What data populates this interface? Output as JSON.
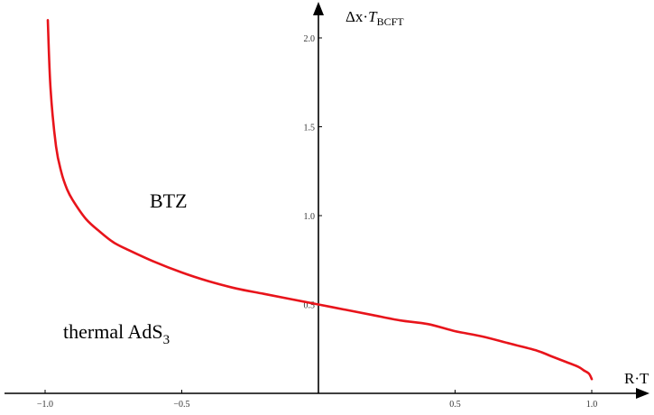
{
  "chart_data": {
    "type": "line",
    "xlabel": {
      "text": "R·T",
      "subscript": ""
    },
    "ylabel": {
      "text": "Δx·",
      "italic": "T",
      "subscript": "BCFT"
    },
    "xlim": [
      -1.12,
      1.12
    ],
    "ylim": [
      0,
      2.0
    ],
    "x_ticks": [
      "−1.0",
      "−0.5",
      "0.5",
      "1.0"
    ],
    "x_tick_values": [
      -1.0,
      -0.5,
      0.5,
      1.0
    ],
    "y_ticks": [
      "0.5",
      "1.0",
      "1.5",
      "2.0"
    ],
    "y_tick_values": [
      0.5,
      1.0,
      1.5,
      2.0
    ],
    "annotations": [
      {
        "text": "BTZ",
        "subscript": ""
      },
      {
        "text": "thermal AdS",
        "subscript": "3"
      }
    ],
    "series": [
      {
        "color": "#e8141b",
        "points": [
          [
            -0.99,
            2.1
          ],
          [
            -0.98,
            1.71
          ],
          [
            -0.96,
            1.39
          ],
          [
            -0.94,
            1.24
          ],
          [
            -0.92,
            1.15
          ],
          [
            -0.9,
            1.09
          ],
          [
            -0.85,
            0.98
          ],
          [
            -0.8,
            0.91
          ],
          [
            -0.75,
            0.85
          ],
          [
            -0.7,
            0.81
          ],
          [
            -0.6,
            0.74
          ],
          [
            -0.5,
            0.68
          ],
          [
            -0.4,
            0.63
          ],
          [
            -0.3,
            0.59
          ],
          [
            -0.2,
            0.56
          ],
          [
            -0.1,
            0.53
          ],
          [
            0.0,
            0.5
          ],
          [
            0.1,
            0.47
          ],
          [
            0.2,
            0.44
          ],
          [
            0.3,
            0.41
          ],
          [
            0.4,
            0.39
          ],
          [
            0.5,
            0.35
          ],
          [
            0.6,
            0.32
          ],
          [
            0.7,
            0.28
          ],
          [
            0.8,
            0.24
          ],
          [
            0.85,
            0.21
          ],
          [
            0.9,
            0.18
          ],
          [
            0.95,
            0.15
          ],
          [
            0.97,
            0.13
          ],
          [
            0.99,
            0.11
          ],
          [
            1.0,
            0.08
          ]
        ]
      }
    ]
  }
}
